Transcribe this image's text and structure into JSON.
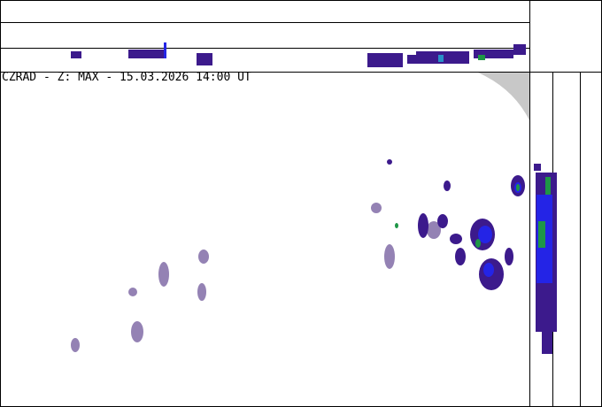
{
  "title": "CZRAD - Z: MAX - 15.03.2026 14:00 UT",
  "colors": {
    "frame": "#000000",
    "echo_weak_old": "#9482b4",
    "echo_weak": "#3c1a8c",
    "echo_moderate": "#2424e6",
    "echo_strong": "#1e9646",
    "echo_cyan": "#2890c8",
    "outside_range": "#c8c8c8"
  }
}
